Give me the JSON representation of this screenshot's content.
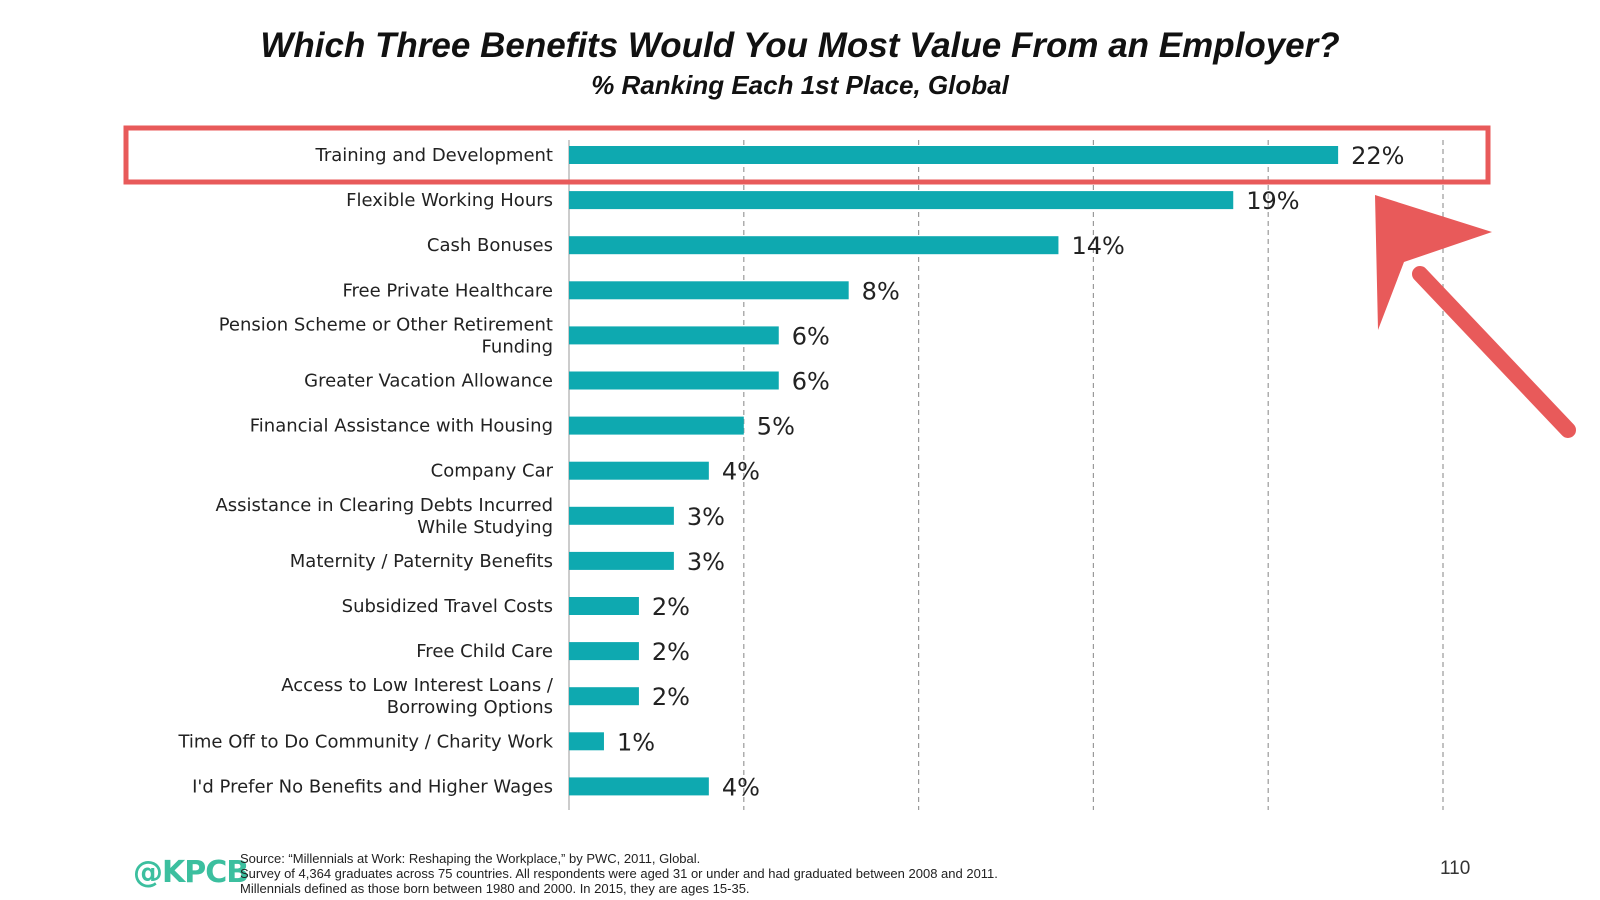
{
  "header": {
    "title": "Which Three Benefits Would You Most Value From an Employer?",
    "subtitle": "% Ranking Each 1st Place, Global"
  },
  "chart_data": {
    "type": "bar",
    "orientation": "horizontal",
    "title": "Which Three Benefits Would You Most Value From an Employer?",
    "subtitle": "% Ranking Each 1st Place, Global",
    "categories": [
      [
        "Training and Development"
      ],
      [
        "Flexible Working Hours"
      ],
      [
        "Cash Bonuses"
      ],
      [
        "Free Private Healthcare"
      ],
      [
        "Pension Scheme or Other Retirement",
        "Funding"
      ],
      [
        "Greater Vacation Allowance"
      ],
      [
        "Financial Assistance with Housing"
      ],
      [
        "Company Car"
      ],
      [
        "Assistance in Clearing Debts Incurred",
        "While Studying"
      ],
      [
        "Maternity / Paternity Benefits"
      ],
      [
        "Subsidized Travel Costs"
      ],
      [
        "Free Child Care"
      ],
      [
        "Access to Low Interest Loans /",
        "Borrowing Options"
      ],
      [
        "Time Off to Do Community / Charity Work"
      ],
      [
        "I'd Prefer No Benefits and Higher Wages"
      ]
    ],
    "values": [
      22,
      19,
      14,
      8,
      6,
      6,
      5,
      4,
      3,
      3,
      2,
      2,
      2,
      1,
      4
    ],
    "value_labels": [
      "22%",
      "19%",
      "14%",
      "8%",
      "6%",
      "6%",
      "5%",
      "4%",
      "3%",
      "3%",
      "2%",
      "2%",
      "2%",
      "1%",
      "4%"
    ],
    "xlim": [
      0,
      25
    ],
    "gridlines_at": [
      5,
      10,
      15,
      20,
      25
    ],
    "grid": true,
    "highlighted_index": 0,
    "bar_color": "#0ea9b0",
    "highlight_color": "#e85a5a"
  },
  "footer": {
    "logo": "@KPCB",
    "source_lines": [
      "Source: “Millennials at Work: Reshaping the Workplace,” by PWC, 2011, Global.",
      "Survey of 4,364 graduates across 75 countries. All respondents were aged 31 or under and had graduated between 2008 and 2011.",
      "Millennials defined as those born between 1980 and 2000. In 2015, they are ages 15-35."
    ],
    "page_number": "110"
  }
}
